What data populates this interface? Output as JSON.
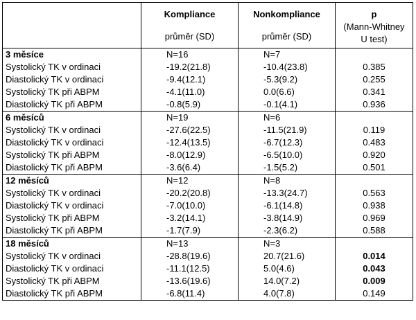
{
  "header": {
    "col_compliance_title": "Kompliance",
    "col_compliance_sub": "průměr (SD)",
    "col_noncompliance_title": "Nonkompliance",
    "col_noncompliance_sub": "průměr (SD)",
    "col_p_title": "p",
    "col_p_line1": "(Mann-Whitney",
    "col_p_line2": "U test)"
  },
  "sections": [
    {
      "label": "3 měsíce",
      "n_compliance": "N=16",
      "n_noncompliance": "N=7",
      "rows": [
        {
          "label": "Systolický TK v ordinaci",
          "compliance": "-19.2(21.8)",
          "noncompliance": "-10.4(23.8)",
          "p": "0.385",
          "significant": false
        },
        {
          "label": "Diastolický TK v ordinaci",
          "compliance": "-9.4(12.1)",
          "noncompliance": "-5.3(9.2)",
          "p": "0.255",
          "significant": false
        },
        {
          "label": "Systolický TK při ABPM",
          "compliance": "-4.1(11.0)",
          "noncompliance": "0.0(6.6)",
          "p": "0.341",
          "significant": false
        },
        {
          "label": "Diastolický TK při ABPM",
          "compliance": "-0.8(5.9)",
          "noncompliance": "-0.1(4.1)",
          "p": "0.936",
          "significant": false
        }
      ]
    },
    {
      "label": "6 měsíců",
      "n_compliance": "N=19",
      "n_noncompliance": "N=6",
      "rows": [
        {
          "label": "Systolický TK v ordinaci",
          "compliance": "-27.6(22.5)",
          "noncompliance": "-11.5(21.9)",
          "p": "0.119",
          "significant": false
        },
        {
          "label": "Diastolický TK v ordinaci",
          "compliance": "-12.4(13.5)",
          "noncompliance": "-6.7(12.3)",
          "p": "0.483",
          "significant": false
        },
        {
          "label": "Systolický TK při ABPM",
          "compliance": "-8.0(12.9)",
          "noncompliance": "-6.5(10.0)",
          "p": "0.920",
          "significant": false
        },
        {
          "label": "Diastolický TK při ABPM",
          "compliance": "-3.6(6.4)",
          "noncompliance": "-1.5(5.2)",
          "p": "0.501",
          "significant": false
        }
      ]
    },
    {
      "label": "12 měsíců",
      "n_compliance": "N=12",
      "n_noncompliance": "N=8",
      "rows": [
        {
          "label": "Systolický TK v ordinaci",
          "compliance": "-20.2(20.8)",
          "noncompliance": "-13.3(24.7)",
          "p": "0.563",
          "significant": false
        },
        {
          "label": "Diastolický TK v ordinaci",
          "compliance": "-7.0(10.0)",
          "noncompliance": "-6.1(14.8)",
          "p": "0.938",
          "significant": false
        },
        {
          "label": "Systolický TK při ABPM",
          "compliance": "-3.2(14.1)",
          "noncompliance": "-3.8(14.9)",
          "p": "0.969",
          "significant": false
        },
        {
          "label": "Diastolický TK při ABPM",
          "compliance": "-1.7(7.9)",
          "noncompliance": "-2.3(6.2)",
          "p": "0.588",
          "significant": false
        }
      ]
    },
    {
      "label": "18 měsíců",
      "n_compliance": "N=13",
      "n_noncompliance": "N=3",
      "rows": [
        {
          "label": "Systolický TK v ordinaci",
          "compliance": "-28.8(19.6)",
          "noncompliance": "20.7(21.6)",
          "p": "0.014",
          "significant": true
        },
        {
          "label": "Diastolický TK v ordinaci",
          "compliance": "-11.1(12.5)",
          "noncompliance": "5.0(4.6)",
          "p": "0.043",
          "significant": true
        },
        {
          "label": "Systolický TK při ABPM",
          "compliance": "-13.6(19.6)",
          "noncompliance": "14.0(7.2)",
          "p": "0.009",
          "significant": true
        },
        {
          "label": "Diastolický TK při ABPM",
          "compliance": "-6.8(11.4)",
          "noncompliance": "4.0(7.8)",
          "p": "0.149",
          "significant": false
        }
      ]
    }
  ]
}
